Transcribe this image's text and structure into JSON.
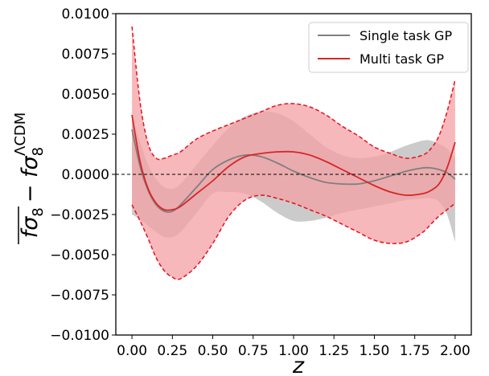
{
  "chart_data": {
    "type": "area",
    "xlabel": "z",
    "ylabel": "fσ₈ − fσ₈^ΛCDM",
    "ylabel_parts": {
      "main": "fσ",
      "main_sub": "8",
      "minus": "− fσ",
      "ref_sub": "8",
      "ref_sup": "ΛCDM"
    },
    "xlim": [
      -0.1,
      2.1
    ],
    "ylim": [
      -0.01,
      0.01
    ],
    "xticks": [
      "0.00",
      "0.25",
      "0.50",
      "0.75",
      "1.00",
      "1.25",
      "1.50",
      "1.75",
      "2.00"
    ],
    "yticks": [
      "−0.0100",
      "−0.0075",
      "−0.0050",
      "−0.0025",
      "0.0000",
      "0.0025",
      "0.0050",
      "0.0075",
      "0.0100"
    ],
    "xtick_values": [
      0,
      0.25,
      0.5,
      0.75,
      1.0,
      1.25,
      1.5,
      1.75,
      2.0
    ],
    "ytick_values": [
      -0.01,
      -0.0075,
      -0.005,
      -0.0025,
      0,
      0.0025,
      0.005,
      0.0075,
      0.01
    ],
    "reference_line": {
      "y": 0,
      "style": "dashed",
      "color": "#000000"
    },
    "legend_position": "top-right",
    "series": [
      {
        "name": "Single task GP",
        "color": "#7f7f7f",
        "band_color": "#bdbdbd",
        "x": [
          0.0,
          0.05,
          0.1,
          0.15,
          0.2,
          0.25,
          0.3,
          0.4,
          0.5,
          0.6,
          0.7,
          0.8,
          0.9,
          1.0,
          1.1,
          1.2,
          1.3,
          1.4,
          1.5,
          1.6,
          1.7,
          1.8,
          1.85,
          1.9,
          1.95,
          2.0
        ],
        "mean": [
          0.0028,
          0.0005,
          -0.001,
          -0.0019,
          -0.0023,
          -0.0023,
          -0.0019,
          -0.0008,
          0.0003,
          0.0009,
          0.0012,
          0.0011,
          0.0007,
          0.0002,
          -0.0002,
          -0.0005,
          -0.0006,
          -0.0006,
          -0.0004,
          -0.0001,
          0.0002,
          0.0004,
          0.0004,
          0.0003,
          0.0001,
          -0.0003
        ],
        "upper": [
          0.0035,
          0.002,
          0.0006,
          -0.0003,
          -0.0008,
          -0.0009,
          -0.0006,
          0.0006,
          0.0018,
          0.0029,
          0.0036,
          0.0039,
          0.0038,
          0.0033,
          0.0025,
          0.0017,
          0.0012,
          0.001,
          0.0011,
          0.0014,
          0.0018,
          0.0021,
          0.0021,
          0.0019,
          0.0016,
          0.001
        ],
        "lower": [
          -0.0025,
          -0.0028,
          -0.0032,
          -0.0036,
          -0.0039,
          -0.0039,
          -0.0036,
          -0.0024,
          -0.0012,
          -0.0011,
          -0.0012,
          -0.0017,
          -0.0024,
          -0.0029,
          -0.0029,
          -0.0027,
          -0.0024,
          -0.0022,
          -0.002,
          -0.0018,
          -0.0016,
          -0.0015,
          -0.0015,
          -0.0017,
          -0.0025,
          -0.0042
        ]
      },
      {
        "name": "Multi task GP",
        "color": "#d62728",
        "band_color": "#f4a0a4",
        "band_edge_color": "#e8101c",
        "x": [
          0.0,
          0.05,
          0.1,
          0.15,
          0.2,
          0.25,
          0.3,
          0.4,
          0.5,
          0.6,
          0.7,
          0.8,
          0.9,
          1.0,
          1.1,
          1.2,
          1.3,
          1.4,
          1.5,
          1.6,
          1.7,
          1.8,
          1.85,
          1.9,
          1.95,
          2.0
        ],
        "mean": [
          0.0037,
          0.0008,
          -0.0009,
          -0.0018,
          -0.0022,
          -0.0022,
          -0.002,
          -0.0012,
          -0.0004,
          0.0005,
          0.0011,
          0.0013,
          0.0014,
          0.0014,
          0.0012,
          0.0008,
          0.0003,
          -0.0002,
          -0.0007,
          -0.0011,
          -0.0013,
          -0.0012,
          -0.001,
          -0.0006,
          0.0004,
          0.002
        ],
        "upper": [
          0.0092,
          0.0045,
          0.0019,
          0.001,
          0.001,
          0.0012,
          0.0014,
          0.0022,
          0.0027,
          0.0031,
          0.0035,
          0.0039,
          0.0043,
          0.0044,
          0.0042,
          0.0037,
          0.003,
          0.0024,
          0.0017,
          0.0013,
          0.001,
          0.0012,
          0.0016,
          0.0024,
          0.0039,
          0.0059
        ],
        "lower": [
          -0.0019,
          -0.0029,
          -0.004,
          -0.0052,
          -0.006,
          -0.0064,
          -0.0065,
          -0.0057,
          -0.0043,
          -0.0026,
          -0.0016,
          -0.0013,
          -0.0015,
          -0.0018,
          -0.0022,
          -0.0026,
          -0.0031,
          -0.0036,
          -0.0041,
          -0.0043,
          -0.0042,
          -0.0036,
          -0.0031,
          -0.0026,
          -0.0022,
          -0.0018
        ]
      }
    ]
  }
}
